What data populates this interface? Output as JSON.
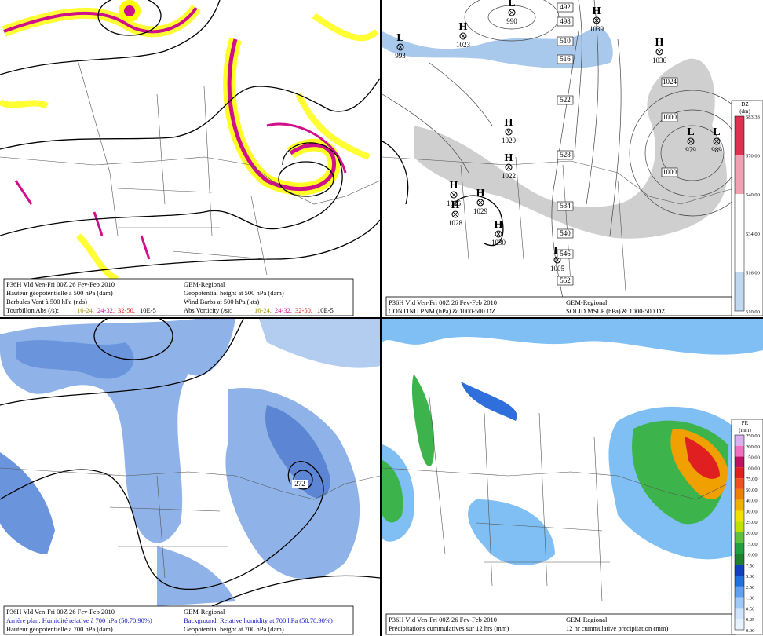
{
  "panels": [
    {
      "caption_left": [
        "P36H Vld Ven-Fri 00Z 26 Fev-Feb 2010",
        "Hauteur géopotentielle à 500 hPa (dam)",
        "Barbules Vent à 500 hPa (nds)"
      ],
      "caption_right": [
        "GEM-Regional",
        "Geopotential height at 500 hPa (dam)",
        "Wind Barbs at 500 hPa (kts)"
      ],
      "legend_left": {
        "label": "Tourbillon Abs (/s):",
        "ranges": [
          "16-24,",
          "24-32,",
          "32-50,"
        ],
        "unit": "10E-5"
      },
      "legend_right": {
        "label": "Abs Vorticity (/s):",
        "ranges": [
          "16-24,",
          "24-32,",
          "32-50,"
        ],
        "unit": "10E-5"
      }
    },
    {
      "caption_left": [
        "P36H Vld Ven-Fri 00Z 26 Fev-Feb 2010",
        "CONTINU PNM (hPa) & 1000-500 DZ"
      ],
      "caption_right": [
        "GEM-Regional",
        "SOLID  MSLP (hPa) & 1000-500 DZ"
      ],
      "pressure_systems": [
        {
          "type": "L",
          "value": "993"
        },
        {
          "type": "H",
          "value": "1023"
        },
        {
          "type": "L",
          "value": "990"
        },
        {
          "type": "H",
          "value": "1039"
        },
        {
          "type": "H",
          "value": "1036"
        },
        {
          "type": "H",
          "value": "1020"
        },
        {
          "type": "H",
          "value": "1022"
        },
        {
          "type": "H",
          "value": "1026"
        },
        {
          "type": "H",
          "value": "1029"
        },
        {
          "type": "H",
          "value": "1028"
        },
        {
          "type": "H",
          "value": "1030"
        },
        {
          "type": "L",
          "value": "1005"
        },
        {
          "type": "L",
          "value": "979"
        },
        {
          "type": "L",
          "value": "989"
        }
      ],
      "contour_labels": [
        "492",
        "498",
        "510",
        "516",
        "522",
        "528",
        "534",
        "540",
        "546",
        "552",
        "1024",
        "1000",
        "1000"
      ],
      "colorbar": {
        "title": "DZ",
        "unit": "(dm)",
        "labels": [
          "583.33",
          "570.00",
          "540.00",
          "534.00",
          "516.00",
          "510.00"
        ]
      }
    },
    {
      "caption_left": [
        "P36H Vld Ven-Fri 00Z 26 Fev-Feb 2010",
        "Arrière plan: Humidité relative à 700 hPa (50,70,90%)",
        "Hauteur géopotentielle à 700 hPa (dam)"
      ],
      "caption_right": [
        "GEM-Regional",
        "Background: Relative humidity at 700 hPa (50,70,90%)",
        "Geopotential height at 700 hPa (dam)"
      ],
      "contour_labels": [
        "272"
      ]
    },
    {
      "caption_left": [
        "P36H Vld Ven-Fri 00Z 26 Fev-Feb 2010",
        "Précipitations cummulatives sur 12 hrs (mm)"
      ],
      "caption_right": [
        "GEM-Regional",
        "12 hr cummulative precipitation     (mm)"
      ],
      "colorbar": {
        "title": "PR",
        "unit": "(mm)",
        "labels": [
          "250.00",
          "200.00",
          "150.00",
          "100.00",
          "75.00",
          "50.00",
          "40.00",
          "30.00",
          "25.00",
          "20.00",
          "15.00",
          "10.00",
          "7.50",
          "5.00",
          "2.50",
          "1.00",
          "0.50",
          "0.25",
          "0.00"
        ]
      }
    }
  ]
}
